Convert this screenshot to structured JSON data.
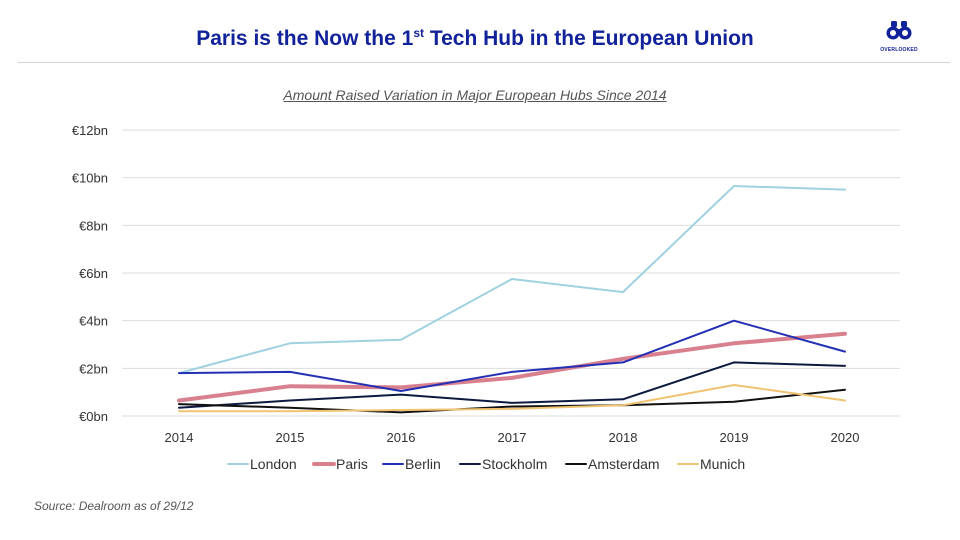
{
  "header": {
    "title_pre": "Paris is the Now the 1",
    "title_sup": "st",
    "title_post": " Tech Hub in the European Union",
    "logo_text": "OVERLOOKED"
  },
  "footer": {
    "source": "Source: Dealroom as of 29/12"
  },
  "colors": {
    "london": "#9fd1e0",
    "paris": "#d9808f",
    "berlin": "#2430b4",
    "stockholm": "#0d1a3f",
    "amsterdam": "#111111",
    "munich": "#f0c373"
  },
  "chart_data": {
    "type": "line",
    "title": "Amount Raised Variation in Major European Hubs Since 2014",
    "xlabel": "",
    "ylabel": "",
    "x": [
      "2014",
      "2015",
      "2016",
      "2017",
      "2018",
      "2019",
      "2020"
    ],
    "ylim": [
      0,
      12
    ],
    "yticks": [
      {
        "value": 0,
        "label": "€0bn"
      },
      {
        "value": 2,
        "label": "€2bn"
      },
      {
        "value": 4,
        "label": "€4bn"
      },
      {
        "value": 6,
        "label": "€6bn"
      },
      {
        "value": 8,
        "label": "€8bn"
      },
      {
        "value": 10,
        "label": "€10bn"
      },
      {
        "value": 12,
        "label": "€12bn"
      }
    ],
    "grid": true,
    "legend_position": "bottom",
    "series": [
      {
        "name": "London",
        "key": "london",
        "values": [
          1.8,
          3.05,
          3.2,
          5.75,
          5.2,
          9.65,
          9.5
        ]
      },
      {
        "name": "Paris",
        "key": "paris",
        "values": [
          0.65,
          1.25,
          1.2,
          1.6,
          2.4,
          3.05,
          3.45
        ]
      },
      {
        "name": "Berlin",
        "key": "berlin",
        "values": [
          1.8,
          1.85,
          1.05,
          1.85,
          2.25,
          4.0,
          2.7
        ]
      },
      {
        "name": "Stockholm",
        "key": "stockholm",
        "values": [
          0.35,
          0.65,
          0.9,
          0.55,
          0.7,
          2.25,
          2.1
        ]
      },
      {
        "name": "Amsterdam",
        "key": "amsterdam",
        "values": [
          0.5,
          0.35,
          0.15,
          0.4,
          0.45,
          0.6,
          1.1
        ]
      },
      {
        "name": "Munich",
        "key": "munich",
        "values": [
          0.2,
          0.2,
          0.25,
          0.3,
          0.45,
          1.3,
          0.65
        ]
      }
    ]
  }
}
